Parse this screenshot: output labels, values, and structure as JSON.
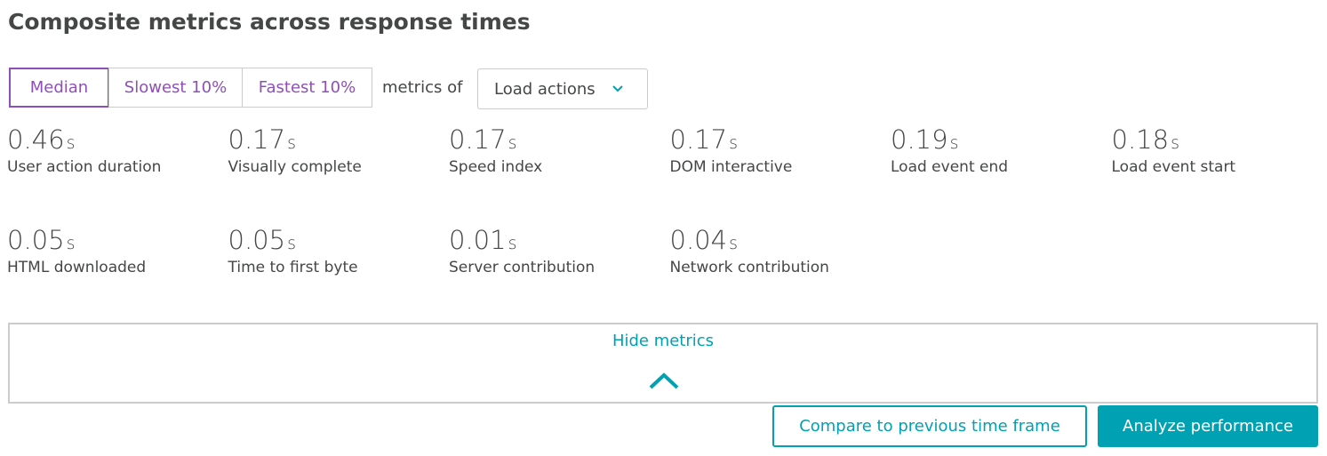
{
  "header": {
    "title": "Composite metrics across response times"
  },
  "tabs": [
    "Median",
    "Slowest 10%",
    "Fastest 10%"
  ],
  "metrics_of": "metrics of",
  "dropdown": "Load actions",
  "metrics": [
    {
      "value": "0.46",
      "unit": "s",
      "label": "User action duration"
    },
    {
      "value": "0.17",
      "unit": "s",
      "label": "Visually complete"
    },
    {
      "value": "0.17",
      "unit": "s",
      "label": "Speed index"
    },
    {
      "value": "0.17",
      "unit": "s",
      "label": "DOM interactive"
    },
    {
      "value": "0.19",
      "unit": "s",
      "label": "Load event end"
    },
    {
      "value": "0.18",
      "unit": "s",
      "label": "Load event start"
    },
    {
      "value": "0.05",
      "unit": "s",
      "label": "HTML downloaded"
    },
    {
      "value": "0.05",
      "unit": "s",
      "label": "Time to first byte"
    },
    {
      "value": "0.01",
      "unit": "s",
      "label": "Server contribution"
    },
    {
      "value": "0.04",
      "unit": "s",
      "label": "Network contribution"
    }
  ],
  "hide_metrics": "Hide metrics",
  "buttons": [
    "Compare to previous time frame",
    "Analyze performance"
  ]
}
